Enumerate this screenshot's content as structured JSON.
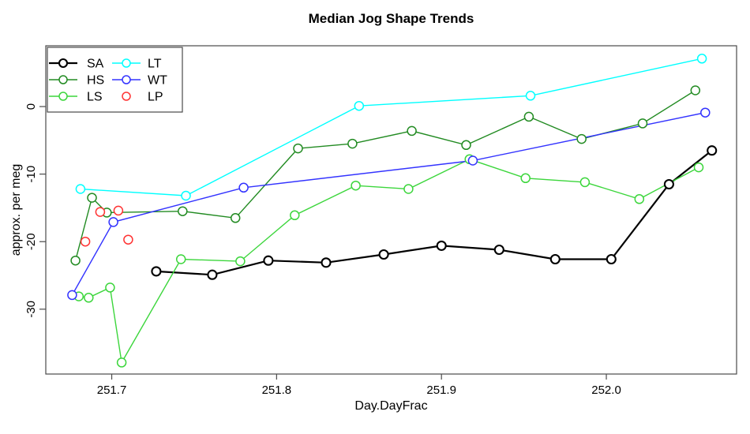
{
  "chart_data": {
    "type": "line",
    "title": "Median Jog Shape Trends",
    "xlabel": "Day.DayFrac",
    "ylabel": "approx. per meg",
    "xlim": [
      251.66,
      252.079
    ],
    "ylim": [
      -39.6,
      9.0
    ],
    "x_ticks": [
      251.7,
      251.8,
      251.9,
      252.0
    ],
    "x_tick_labels": [
      "251.7",
      "251.8",
      "251.9",
      "252.0"
    ],
    "y_ticks": [
      0,
      -10,
      -20,
      -30
    ],
    "y_tick_labels": [
      "0",
      "-10",
      "-20",
      "-30"
    ],
    "grid": false,
    "legend_position": "topleft",
    "marker": "open-circle",
    "series": [
      {
        "name": "SA",
        "color": "#000000",
        "line": true,
        "x": [
          251.727,
          251.761,
          251.795,
          251.83,
          251.865,
          251.9,
          251.935,
          251.969,
          252.003,
          252.038,
          252.064
        ],
        "y": [
          -24.4,
          -24.9,
          -22.8,
          -23.1,
          -21.9,
          -20.6,
          -21.2,
          -22.6,
          -22.6,
          -11.5,
          -6.5
        ]
      },
      {
        "name": "HS",
        "color": "#228B22",
        "line": true,
        "x": [
          251.678,
          251.688,
          251.697,
          251.743,
          251.775,
          251.813,
          251.846,
          251.882,
          251.915,
          251.953,
          251.985,
          252.022,
          252.054
        ],
        "y": [
          -22.8,
          -13.5,
          -15.7,
          -15.5,
          -16.5,
          -6.2,
          -5.5,
          -3.6,
          -5.7,
          -1.5,
          -4.8,
          -2.5,
          2.4
        ]
      },
      {
        "name": "LS",
        "color": "#3CD63C",
        "line": true,
        "x": [
          251.68,
          251.686,
          251.699,
          251.706,
          251.742,
          251.778,
          251.811,
          251.848,
          251.88,
          251.917,
          251.951,
          251.987,
          252.02,
          252.056
        ],
        "y": [
          -28.1,
          -28.3,
          -26.8,
          -37.9,
          -22.6,
          -22.9,
          -16.1,
          -11.7,
          -12.2,
          -7.8,
          -10.6,
          -11.2,
          -13.7,
          -9.0
        ]
      },
      {
        "name": "LT",
        "color": "#00FFFF",
        "line": true,
        "x": [
          251.681,
          251.745,
          251.85,
          251.954,
          252.058
        ],
        "y": [
          -12.2,
          -13.2,
          0.1,
          1.6,
          7.1
        ]
      },
      {
        "name": "WT",
        "color": "#3333FF",
        "line": true,
        "x": [
          251.676,
          251.701,
          251.78,
          251.919,
          252.06
        ],
        "y": [
          -27.9,
          -17.1,
          -12.0,
          -8.0,
          -0.9
        ]
      },
      {
        "name": "LP",
        "color": "#FF3333",
        "line": false,
        "x": [
          251.684,
          251.693,
          251.704,
          251.71
        ],
        "y": [
          -20.0,
          -15.6,
          -15.4,
          -19.7
        ]
      }
    ]
  }
}
